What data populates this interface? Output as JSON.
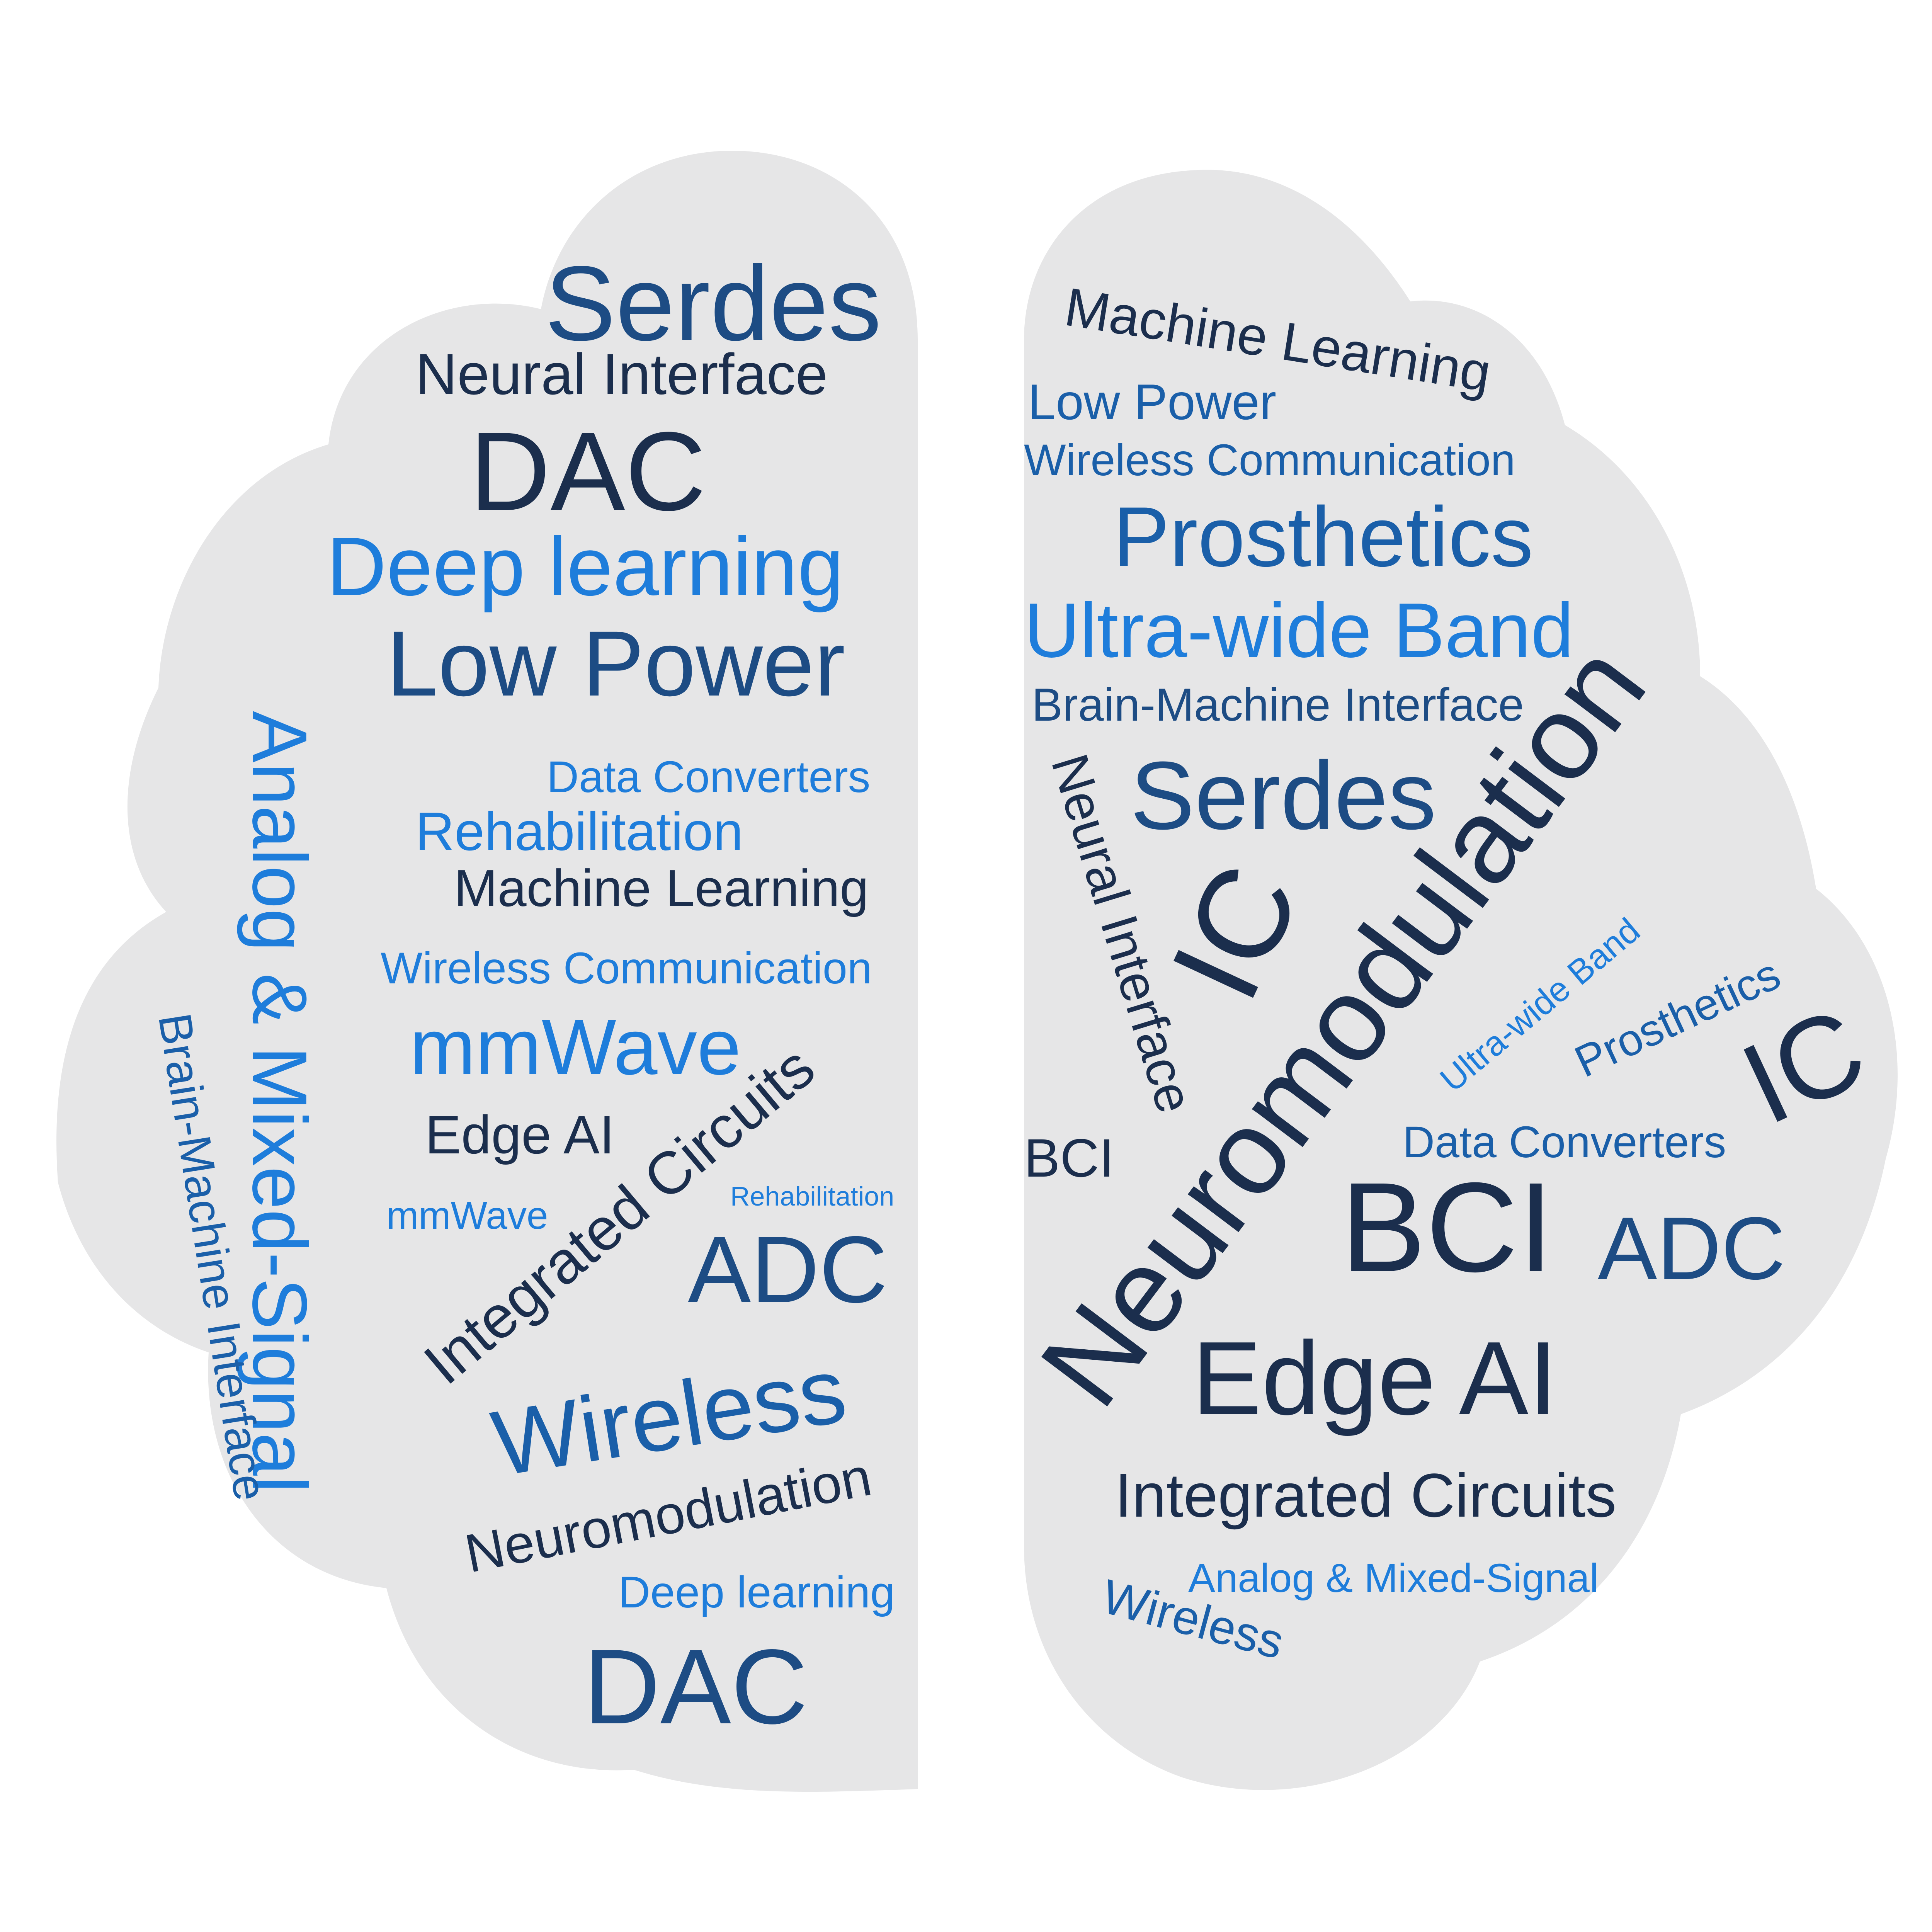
{
  "colors": {
    "background": "#ffffff",
    "hemisphere_fill": "#e6e6e7",
    "navy": "#1b2e4d",
    "dark_blue": "#1d4c84",
    "mid_blue": "#1a5fa9",
    "bright_blue": "#1e7ddb"
  },
  "left_hemisphere": {
    "words": [
      {
        "text": "Serdes",
        "color": "dark_blue"
      },
      {
        "text": "Neural Interface",
        "color": "navy"
      },
      {
        "text": "DAC",
        "color": "navy"
      },
      {
        "text": "Deep learning",
        "color": "bright_blue"
      },
      {
        "text": "Low Power",
        "color": "dark_blue"
      },
      {
        "text": "Analog & Mixed-Signal",
        "color": "bright_blue"
      },
      {
        "text": "Data Converters",
        "color": "bright_blue"
      },
      {
        "text": "Rehabilitation",
        "color": "bright_blue"
      },
      {
        "text": "Machine Learning",
        "color": "navy"
      },
      {
        "text": "Wireless Communication",
        "color": "bright_blue"
      },
      {
        "text": "Brain-Machine Interface",
        "color": "mid_blue"
      },
      {
        "text": "mmWave",
        "color": "bright_blue"
      },
      {
        "text": "Edge AI",
        "color": "navy"
      },
      {
        "text": "Integrated Circuits",
        "color": "navy"
      },
      {
        "text": "mmWave",
        "color": "bright_blue"
      },
      {
        "text": "Rehabilitation",
        "color": "bright_blue"
      },
      {
        "text": "ADC",
        "color": "dark_blue"
      },
      {
        "text": "Wireless",
        "color": "mid_blue"
      },
      {
        "text": "Neuromodulation",
        "color": "navy"
      },
      {
        "text": "Deep learning",
        "color": "bright_blue"
      },
      {
        "text": "DAC",
        "color": "dark_blue"
      }
    ]
  },
  "right_hemisphere": {
    "words": [
      {
        "text": "Machine Learning",
        "color": "navy"
      },
      {
        "text": "Low Power",
        "color": "mid_blue"
      },
      {
        "text": "Wireless Communication",
        "color": "mid_blue"
      },
      {
        "text": "Prosthetics",
        "color": "mid_blue"
      },
      {
        "text": "Ultra-wide Band",
        "color": "bright_blue"
      },
      {
        "text": "Brain-Machine Interface",
        "color": "dark_blue"
      },
      {
        "text": "Serdes",
        "color": "dark_blue"
      },
      {
        "text": "Neural Interface",
        "color": "navy"
      },
      {
        "text": "IC",
        "color": "navy"
      },
      {
        "text": "Neuromodulation",
        "color": "navy"
      },
      {
        "text": "Ultra-wide Band",
        "color": "bright_blue"
      },
      {
        "text": "Prosthetics",
        "color": "mid_blue"
      },
      {
        "text": "IC",
        "color": "navy"
      },
      {
        "text": "BCI",
        "color": "navy"
      },
      {
        "text": "Data Converters",
        "color": "mid_blue"
      },
      {
        "text": "BCI",
        "color": "navy"
      },
      {
        "text": "ADC",
        "color": "dark_blue"
      },
      {
        "text": "Edge AI",
        "color": "navy"
      },
      {
        "text": "Integrated Circuits",
        "color": "navy"
      },
      {
        "text": "Analog & Mixed-Signal",
        "color": "bright_blue"
      },
      {
        "text": "Wireless",
        "color": "mid_blue"
      }
    ]
  }
}
